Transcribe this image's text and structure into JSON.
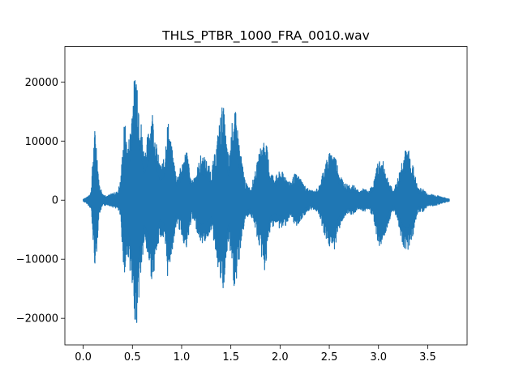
{
  "chart_data": {
    "type": "line",
    "title": "THLS_PTBR_1000_FRA_0010.wav",
    "xlabel": "",
    "ylabel": "",
    "xlim": [
      -0.186,
      3.9
    ],
    "ylim": [
      -24500,
      26000
    ],
    "x_ticks": [
      0.0,
      0.5,
      1.0,
      1.5,
      2.0,
      2.5,
      3.0,
      3.5
    ],
    "x_tick_labels": [
      "0.0",
      "0.5",
      "1.0",
      "1.5",
      "2.0",
      "2.5",
      "3.0",
      "3.5"
    ],
    "y_ticks": [
      -20000,
      -10000,
      0,
      10000,
      20000
    ],
    "y_tick_labels": [
      "−20000",
      "−10000",
      "0",
      "10000",
      "20000"
    ],
    "grid": false,
    "legend": "none",
    "series": [
      {
        "color": "#1f77b4",
        "x": [
          0.0,
          0.04,
          0.08,
          0.1,
          0.12,
          0.14,
          0.16,
          0.2,
          0.25,
          0.3,
          0.35,
          0.38,
          0.42,
          0.45,
          0.48,
          0.5,
          0.54,
          0.58,
          0.62,
          0.66,
          0.7,
          0.74,
          0.78,
          0.82,
          0.86,
          0.9,
          0.95,
          1.0,
          1.05,
          1.1,
          1.15,
          1.2,
          1.25,
          1.3,
          1.35,
          1.38,
          1.42,
          1.45,
          1.48,
          1.52,
          1.55,
          1.6,
          1.65,
          1.7,
          1.75,
          1.8,
          1.85,
          1.9,
          1.95,
          2.0,
          2.05,
          2.1,
          2.15,
          2.2,
          2.25,
          2.3,
          2.35,
          2.4,
          2.45,
          2.5,
          2.55,
          2.6,
          2.65,
          2.7,
          2.75,
          2.8,
          2.85,
          2.9,
          2.95,
          3.0,
          3.05,
          3.1,
          3.15,
          3.2,
          3.25,
          3.3,
          3.35,
          3.4,
          3.45,
          3.5,
          3.55,
          3.6,
          3.65,
          3.72
        ],
        "y_max": [
          200,
          500,
          1500,
          8000,
          12500,
          9000,
          3000,
          1000,
          800,
          1200,
          1500,
          3500,
          14000,
          9000,
          12500,
          18000,
          23500,
          15000,
          8000,
          11500,
          16000,
          10000,
          6000,
          7000,
          14000,
          9000,
          4000,
          6000,
          9000,
          3000,
          5000,
          8000,
          7000,
          5000,
          9000,
          13000,
          17000,
          11000,
          7000,
          14500,
          15000,
          8000,
          3000,
          2000,
          5000,
          9000,
          11000,
          5000,
          4000,
          5000,
          4500,
          3000,
          4500,
          4000,
          2500,
          1800,
          1500,
          2500,
          6000,
          8000,
          8500,
          5000,
          3000,
          2500,
          2500,
          1500,
          2000,
          1500,
          3000,
          7000,
          6500,
          3500,
          1500,
          4000,
          8000,
          9000,
          6000,
          2000,
          2000,
          1000,
          1000,
          800,
          500,
          200
        ],
        "y_min": [
          -200,
          -600,
          -1500,
          -7000,
          -11500,
          -8500,
          -2500,
          -1000,
          -800,
          -1200,
          -1500,
          -3000,
          -14000,
          -9000,
          -12500,
          -17000,
          -22000,
          -14000,
          -7500,
          -10000,
          -14000,
          -10000,
          -6000,
          -7000,
          -13500,
          -9000,
          -4000,
          -6000,
          -9000,
          -3000,
          -5000,
          -7500,
          -7000,
          -5000,
          -9000,
          -13000,
          -16500,
          -11000,
          -7000,
          -14000,
          -16000,
          -8000,
          -3000,
          -2500,
          -5000,
          -9000,
          -12500,
          -5000,
          -4000,
          -5000,
          -4500,
          -3000,
          -4500,
          -4000,
          -2500,
          -1800,
          -1500,
          -2500,
          -6000,
          -8000,
          -8500,
          -5000,
          -3000,
          -2500,
          -2500,
          -1500,
          -2000,
          -1500,
          -3000,
          -8000,
          -7000,
          -4000,
          -1500,
          -4000,
          -8000,
          -8500,
          -6000,
          -2000,
          -2000,
          -1000,
          -1000,
          -800,
          -500,
          -200
        ]
      }
    ]
  }
}
